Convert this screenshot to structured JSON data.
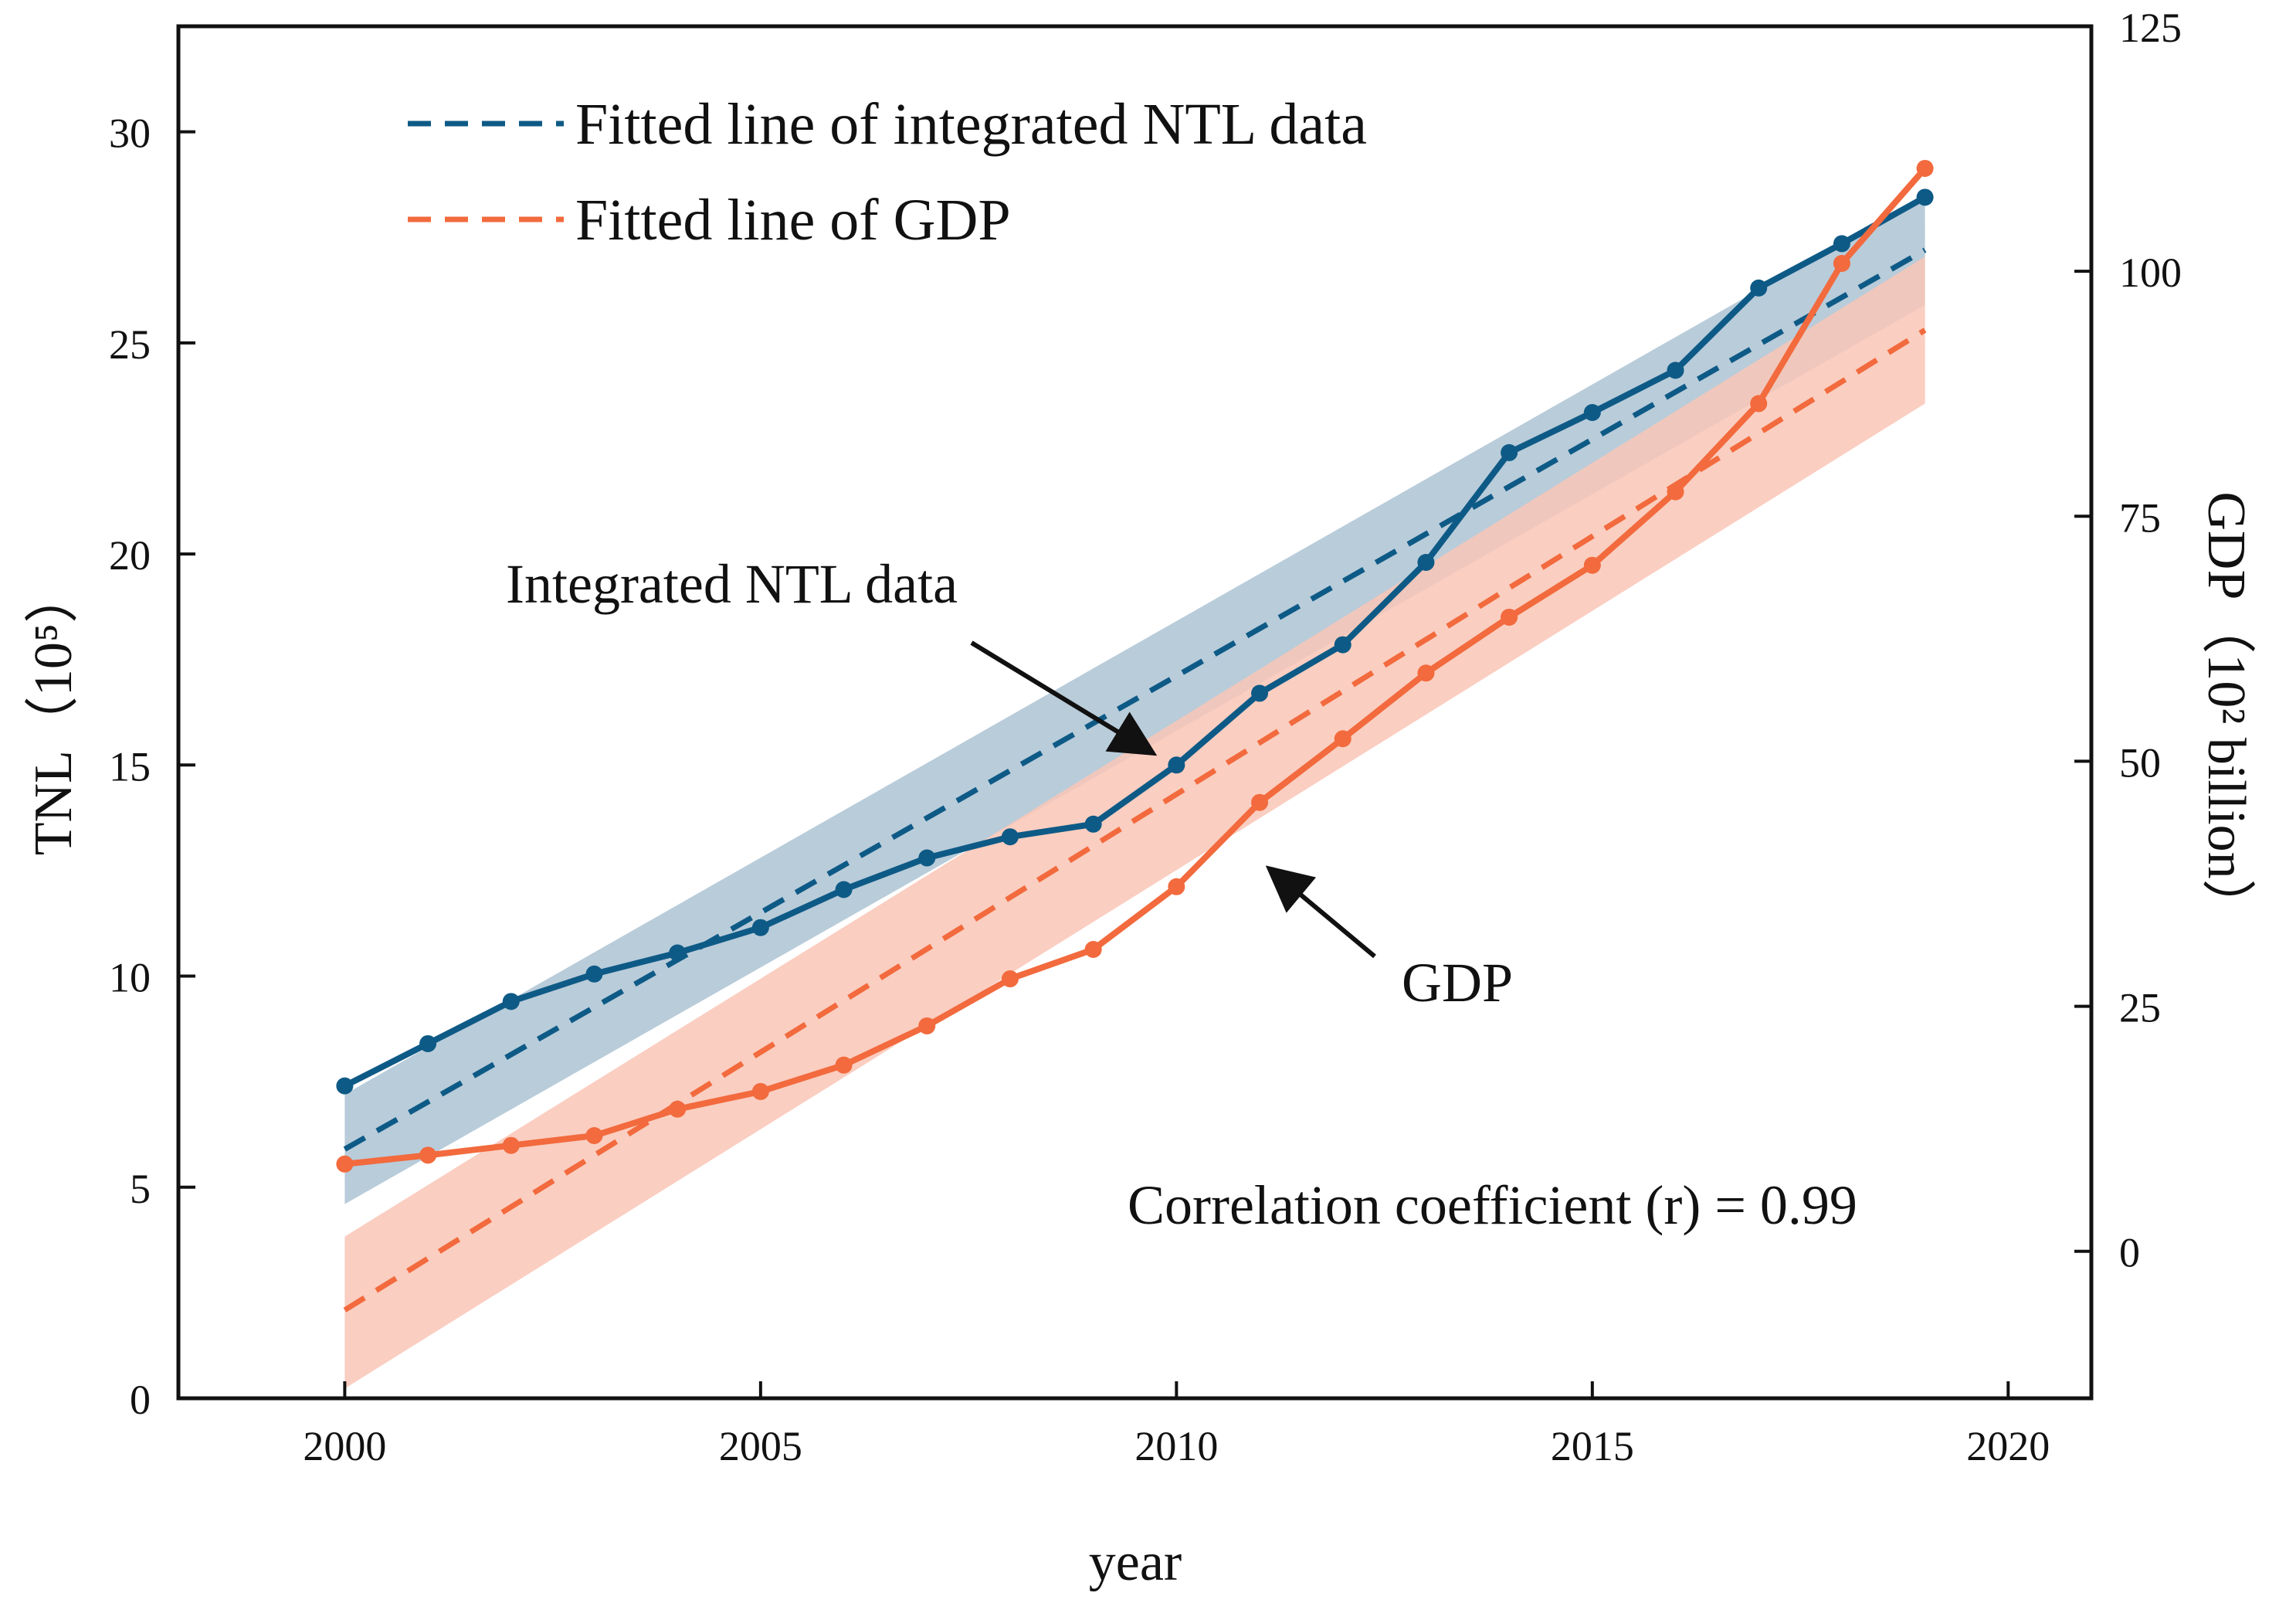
{
  "chart_data": {
    "type": "line",
    "title": "",
    "xlabel": "year",
    "ylabel_left": "TNL（10⁵）",
    "ylabel_right": "GDP（10² billion）",
    "xlim": [
      1998,
      2021
    ],
    "ylim_left": [
      0,
      32.5
    ],
    "ylim_right": [
      -15,
      125
    ],
    "x_ticks": [
      2000,
      2005,
      2010,
      2015,
      2020
    ],
    "y_left_ticks": [
      0,
      5,
      10,
      15,
      20,
      25,
      30
    ],
    "y_right_ticks": [
      0,
      25,
      50,
      75,
      100,
      125
    ],
    "grid": false,
    "colors": {
      "ntl": "#0e5a86",
      "ntl_band": "#adc3d4",
      "gdp": "#f26a3d",
      "gdp_band": "#f9c6b6",
      "text": "#111111"
    },
    "series": [
      {
        "name": "Integrated NTL data",
        "axis": "left",
        "x": [
          2000,
          2001,
          2002,
          2003,
          2004,
          2005,
          2006,
          2007,
          2008,
          2009,
          2010,
          2011,
          2012,
          2013,
          2014,
          2015,
          2016,
          2017,
          2018,
          2019
        ],
        "values": [
          7.4,
          8.4,
          9.4,
          10.05,
          10.55,
          11.15,
          12.05,
          12.8,
          13.3,
          13.6,
          15.0,
          16.7,
          17.85,
          19.8,
          22.4,
          23.35,
          24.35,
          26.3,
          27.35,
          28.45
        ]
      },
      {
        "name": "GDP",
        "axis": "right",
        "x": [
          2000,
          2001,
          2002,
          2003,
          2004,
          2005,
          2006,
          2007,
          2008,
          2009,
          2010,
          2011,
          2012,
          2013,
          2014,
          2015,
          2016,
          2017,
          2018,
          2019
        ],
        "values": [
          8.9,
          9.8,
          10.8,
          11.8,
          14.5,
          16.3,
          19.0,
          23.0,
          27.8,
          30.8,
          37.2,
          45.8,
          52.3,
          59.0,
          64.7,
          70.0,
          77.5,
          86.5,
          100.8,
          110.5
        ]
      }
    ],
    "fitted_lines": [
      {
        "name": "Fitted line of integrated NTL data",
        "axis": "left",
        "x": [
          2000,
          2019
        ],
        "values": [
          5.9,
          27.2
        ],
        "band_lower": [
          4.6,
          25.9
        ],
        "band_upper": [
          7.2,
          28.5
        ]
      },
      {
        "name": "Fitted line of GDP",
        "axis": "right",
        "x": [
          2000,
          2019
        ],
        "values": [
          -6.0,
          94.0
        ],
        "band_lower": [
          -14.0,
          86.5
        ],
        "band_upper": [
          1.5,
          101.5
        ]
      }
    ],
    "legend": {
      "position": "top-left",
      "entries": [
        "Fitted line of integrated NTL data",
        "Fitted line of GDP"
      ]
    },
    "annotations": {
      "ntl_label": "Integrated NTL data",
      "gdp_label": "GDP",
      "correlation": "Correlation coefficient (r) = 0.99"
    }
  }
}
